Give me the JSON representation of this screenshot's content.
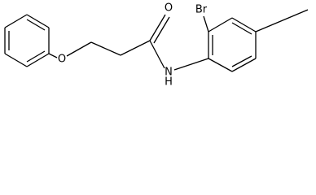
{
  "atoms": [
    {
      "label": "O"
    },
    {
      "label": "O"
    },
    {
      "label": "N"
    },
    {
      "label": "H"
    },
    {
      "label": "Br"
    }
  ]
}
